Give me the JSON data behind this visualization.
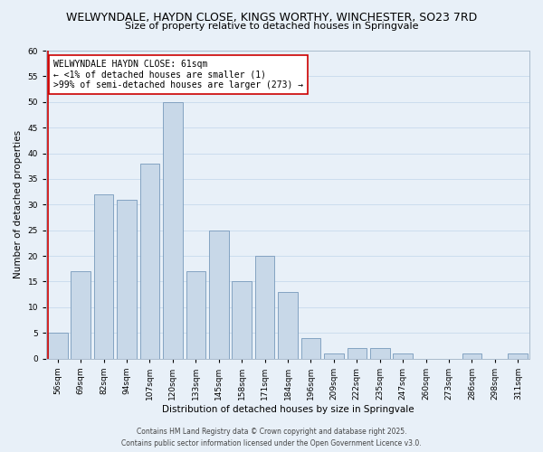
{
  "title_line1": "WELWYNDALE, HAYDN CLOSE, KINGS WORTHY, WINCHESTER, SO23 7RD",
  "title_line2": "Size of property relative to detached houses in Springvale",
  "xlabel": "Distribution of detached houses by size in Springvale",
  "ylabel": "Number of detached properties",
  "categories": [
    "56sqm",
    "69sqm",
    "82sqm",
    "94sqm",
    "107sqm",
    "120sqm",
    "133sqm",
    "145sqm",
    "158sqm",
    "171sqm",
    "184sqm",
    "196sqm",
    "209sqm",
    "222sqm",
    "235sqm",
    "247sqm",
    "260sqm",
    "273sqm",
    "286sqm",
    "298sqm",
    "311sqm"
  ],
  "values": [
    5,
    17,
    32,
    31,
    38,
    50,
    17,
    25,
    15,
    20,
    13,
    4,
    1,
    2,
    2,
    1,
    0,
    0,
    1,
    0,
    1
  ],
  "bar_color": "#c8d8e8",
  "bar_edge_color": "#7799bb",
  "highlight_bar_edge_color": "#cc0000",
  "annotation_box_text": "WELWYNDALE HAYDN CLOSE: 61sqm\n← <1% of detached houses are smaller (1)\n>99% of semi-detached houses are larger (273) →",
  "annotation_box_edge_color": "#cc0000",
  "annotation_box_face_color": "#ffffff",
  "ylim": [
    0,
    60
  ],
  "yticks": [
    0,
    5,
    10,
    15,
    20,
    25,
    30,
    35,
    40,
    45,
    50,
    55,
    60
  ],
  "grid_color": "#ccddee",
  "background_color": "#e8f0f8",
  "footer_line1": "Contains HM Land Registry data © Crown copyright and database right 2025.",
  "footer_line2": "Contains public sector information licensed under the Open Government Licence v3.0.",
  "title_fontsize": 9,
  "subtitle_fontsize": 8,
  "axis_label_fontsize": 7.5,
  "tick_fontsize": 6.5,
  "annotation_fontsize": 7,
  "footer_fontsize": 5.5
}
